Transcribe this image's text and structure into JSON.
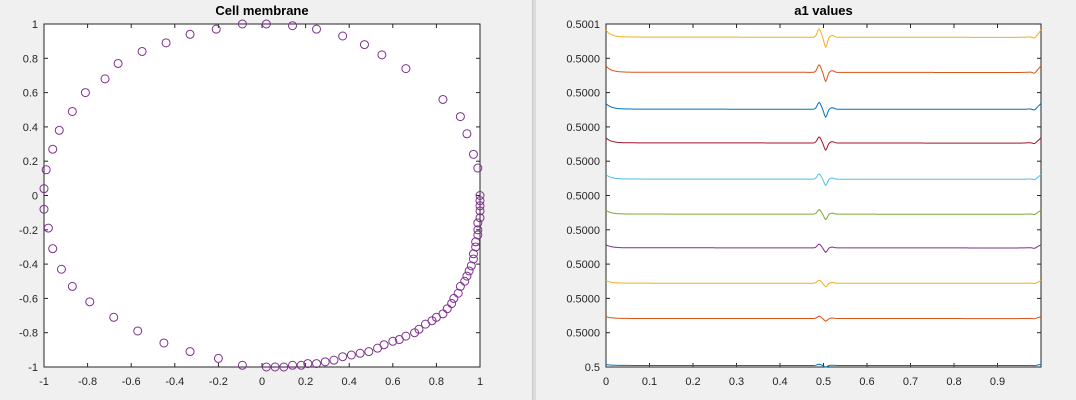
{
  "chart_data": [
    {
      "type": "scatter",
      "title": "Cell membrane",
      "xlabel": "",
      "ylabel": "",
      "xlim": [
        -1,
        1
      ],
      "ylim": [
        -1,
        1
      ],
      "grid": false,
      "marker": "open-circle",
      "color": "#7e2f8e",
      "x_ticks": [
        "-1",
        "-0.8",
        "-0.6",
        "-0.4",
        "-0.2",
        "0",
        "0.2",
        "0.4",
        "0.6",
        "0.8",
        "1"
      ],
      "y_ticks": [
        "1",
        "0.8",
        "0.6",
        "0.4",
        "0.2",
        "0",
        "-0.2",
        "-0.4",
        "-0.6",
        "-0.8",
        "-1"
      ],
      "points": [
        [
          1.0,
          0.0
        ],
        [
          0.99,
          0.16
        ],
        [
          0.97,
          0.24
        ],
        [
          0.94,
          0.36
        ],
        [
          0.91,
          0.46
        ],
        [
          0.83,
          0.56
        ],
        [
          0.66,
          0.74
        ],
        [
          0.55,
          0.82
        ],
        [
          0.47,
          0.88
        ],
        [
          0.37,
          0.93
        ],
        [
          0.25,
          0.97
        ],
        [
          0.14,
          0.99
        ],
        [
          0.02,
          1.0
        ],
        [
          -0.09,
          1.0
        ],
        [
          -0.21,
          0.97
        ],
        [
          -0.33,
          0.94
        ],
        [
          -0.44,
          0.89
        ],
        [
          -0.55,
          0.84
        ],
        [
          -0.66,
          0.77
        ],
        [
          -0.72,
          0.68
        ],
        [
          -0.81,
          0.6
        ],
        [
          -0.87,
          0.49
        ],
        [
          -0.93,
          0.38
        ],
        [
          -0.96,
          0.27
        ],
        [
          -0.99,
          0.15
        ],
        [
          -1.0,
          0.04
        ],
        [
          -1.0,
          -0.08
        ],
        [
          -0.98,
          -0.19
        ],
        [
          -0.96,
          -0.31
        ],
        [
          -0.92,
          -0.43
        ],
        [
          -0.87,
          -0.53
        ],
        [
          -0.79,
          -0.62
        ],
        [
          -0.68,
          -0.71
        ],
        [
          -0.57,
          -0.79
        ],
        [
          -0.45,
          -0.86
        ],
        [
          -0.33,
          -0.91
        ],
        [
          -0.2,
          -0.95
        ],
        [
          -0.09,
          -0.99
        ],
        [
          0.02,
          -1.0
        ],
        [
          0.06,
          -1.0
        ],
        [
          0.1,
          -1.0
        ],
        [
          0.14,
          -0.99
        ],
        [
          0.18,
          -0.99
        ],
        [
          0.21,
          -0.98
        ],
        [
          0.25,
          -0.98
        ],
        [
          0.29,
          -0.97
        ],
        [
          0.33,
          -0.96
        ],
        [
          0.37,
          -0.94
        ],
        [
          0.41,
          -0.93
        ],
        [
          0.45,
          -0.92
        ],
        [
          0.49,
          -0.91
        ],
        [
          0.53,
          -0.89
        ],
        [
          0.56,
          -0.87
        ],
        [
          0.6,
          -0.85
        ],
        [
          0.63,
          -0.84
        ],
        [
          0.66,
          -0.82
        ],
        [
          0.7,
          -0.8
        ],
        [
          0.72,
          -0.78
        ],
        [
          0.75,
          -0.75
        ],
        [
          0.78,
          -0.73
        ],
        [
          0.8,
          -0.71
        ],
        [
          0.83,
          -0.69
        ],
        [
          0.85,
          -0.66
        ],
        [
          0.87,
          -0.63
        ],
        [
          0.88,
          -0.6
        ],
        [
          0.9,
          -0.57
        ],
        [
          0.91,
          -0.53
        ],
        [
          0.93,
          -0.5
        ],
        [
          0.94,
          -0.47
        ],
        [
          0.95,
          -0.44
        ],
        [
          0.96,
          -0.41
        ],
        [
          0.97,
          -0.37
        ],
        [
          0.97,
          -0.34
        ],
        [
          0.98,
          -0.3
        ],
        [
          0.98,
          -0.27
        ],
        [
          0.99,
          -0.23
        ],
        [
          0.99,
          -0.2
        ],
        [
          0.99,
          -0.16
        ],
        [
          1.0,
          -0.13
        ],
        [
          1.0,
          -0.09
        ],
        [
          1.0,
          -0.06
        ],
        [
          1.0,
          -0.03
        ]
      ]
    },
    {
      "type": "line",
      "title": "a1 values",
      "xlabel": "",
      "ylabel": "",
      "xlim": [
        0,
        1
      ],
      "ylim": [
        0.5,
        0.5001
      ],
      "grid": false,
      "x_ticks": [
        "0",
        "0.1",
        "0.2",
        "0.3",
        "0.4",
        "0.5",
        "0.6",
        "0.7",
        "0.8",
        "0.9"
      ],
      "y_ticks": [
        "0.5001",
        "0.5000",
        "0.5000",
        "0.5000",
        "0.5000",
        "0.5000",
        "0.5000",
        "0.5000",
        "0.5000",
        "0.5000",
        "0.5"
      ],
      "series": [
        {
          "baseline": 0.50000045,
          "color": "#0072bd",
          "spike": 3.5e-07
        },
        {
          "baseline": 0.50001415,
          "color": "#d95319",
          "spike": 6e-07
        },
        {
          "baseline": 0.50002445,
          "color": "#edb120",
          "spike": 8e-07
        },
        {
          "baseline": 0.50003475,
          "color": "#7e2f8e",
          "spike": 1e-06
        },
        {
          "baseline": 0.5000446,
          "color": "#77ac30",
          "spike": 1.2e-06
        },
        {
          "baseline": 0.5000548,
          "color": "#4dbeee",
          "spike": 1.4e-06
        },
        {
          "baseline": 0.50006535,
          "color": "#a2142f",
          "spike": 1.6e-06
        },
        {
          "baseline": 0.5000752,
          "color": "#0072bd",
          "spike": 1.8e-06
        },
        {
          "baseline": 0.50008595,
          "color": "#d95319",
          "spike": 2e-06
        },
        {
          "baseline": 0.5000962,
          "color": "#edb120",
          "spike": 2.2e-06
        }
      ]
    }
  ]
}
